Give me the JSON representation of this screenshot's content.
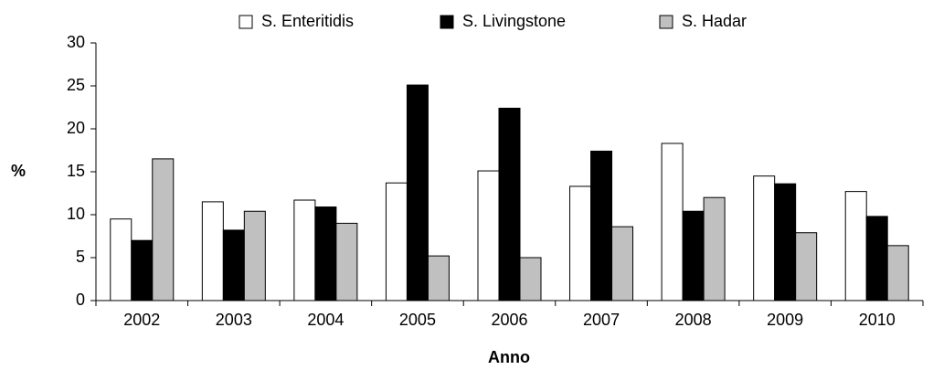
{
  "chart_data": {
    "type": "bar",
    "categories": [
      "2002",
      "2003",
      "2004",
      "2005",
      "2006",
      "2007",
      "2008",
      "2009",
      "2010"
    ],
    "series": [
      {
        "name": "S. Enteritidis",
        "color": "#ffffff",
        "values": [
          9.5,
          11.5,
          11.7,
          13.7,
          15.1,
          13.3,
          18.3,
          14.5,
          12.7
        ]
      },
      {
        "name": "S. Livingstone",
        "color": "#000000",
        "values": [
          7.0,
          8.2,
          10.9,
          25.1,
          22.4,
          17.4,
          10.4,
          13.6,
          9.8
        ]
      },
      {
        "name": "S. Hadar",
        "color": "#c0c0c0",
        "values": [
          16.5,
          10.4,
          9.0,
          5.2,
          5.0,
          8.6,
          12.0,
          7.9,
          6.4
        ]
      }
    ],
    "x_label": "Anno",
    "y_label": "%",
    "ylim": [
      0,
      30
    ],
    "yticks": [
      0,
      5,
      10,
      15,
      20,
      25,
      30
    ],
    "grid": false,
    "legend": "top"
  }
}
